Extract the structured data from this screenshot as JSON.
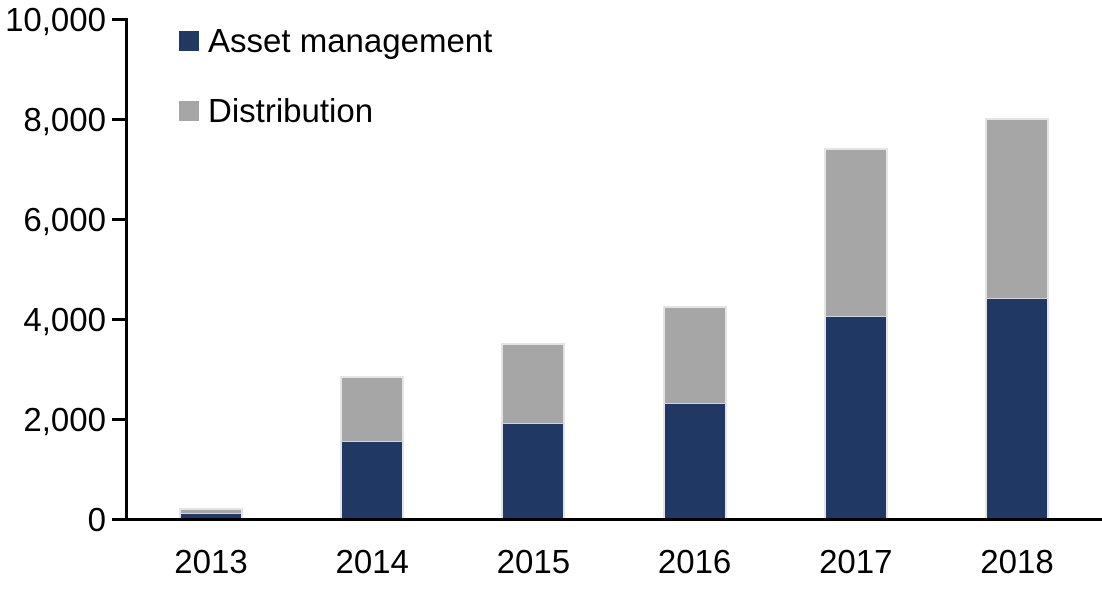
{
  "chart_data": {
    "type": "bar",
    "stacked": true,
    "title": "",
    "xlabel": "",
    "ylabel": "",
    "categories": [
      "2013",
      "2014",
      "2015",
      "2016",
      "2017",
      "2018"
    ],
    "series": [
      {
        "name": "Asset management",
        "color": "#203864",
        "values": [
          100,
          1550,
          1900,
          2300,
          4050,
          4400
        ]
      },
      {
        "name": "Distribution",
        "color": "#a6a6a6",
        "values": [
          100,
          1300,
          1600,
          1950,
          3350,
          3600
        ]
      }
    ],
    "totals": [
      200,
      2850,
      3500,
      4250,
      7400,
      8000
    ],
    "ylim": [
      0,
      10000
    ],
    "ytick_step": 2000,
    "ytick_values": [
      0,
      2000,
      4000,
      6000,
      8000,
      10000
    ],
    "ytick_labels": [
      "0",
      "2,000",
      "4,000",
      "6,000",
      "8,000",
      "10,000"
    ],
    "grid": false,
    "legend_position": "top-left",
    "axis_color": "#000000"
  }
}
